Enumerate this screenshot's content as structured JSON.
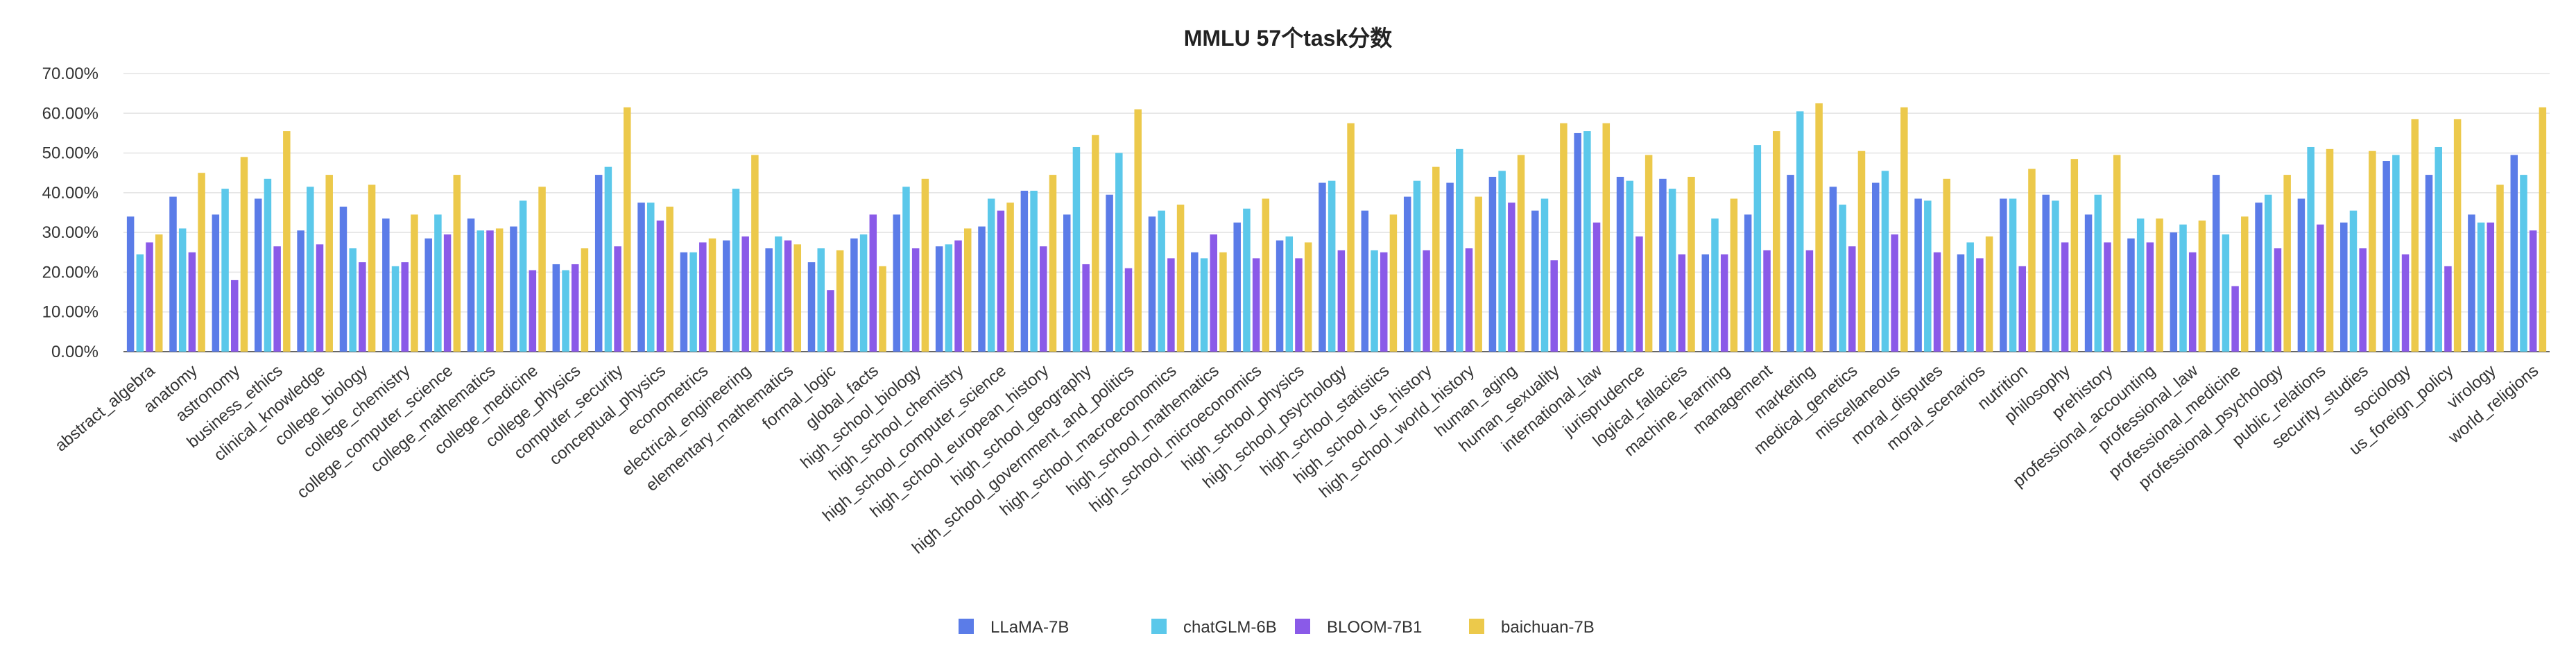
{
  "chart_data": {
    "type": "bar",
    "title": "MMLU 57个task分数",
    "xlabel": "",
    "ylabel": "",
    "ylim": [
      0,
      70
    ],
    "yticks": [
      "0.00%",
      "10.00%",
      "20.00%",
      "30.00%",
      "40.00%",
      "50.00%",
      "60.00%",
      "70.00%"
    ],
    "grid": true,
    "legend_position": "bottom-center",
    "categories": [
      "abstract_algebra",
      "anatomy",
      "astronomy",
      "business_ethics",
      "clinical_knowledge",
      "college_biology",
      "college_chemistry",
      "college_computer_science",
      "college_mathematics",
      "college_medicine",
      "college_physics",
      "computer_security",
      "conceptual_physics",
      "econometrics",
      "electrical_engineering",
      "elementary_mathematics",
      "formal_logic",
      "global_facts",
      "high_school_biology",
      "high_school_chemistry",
      "high_school_computer_science",
      "high_school_european_history",
      "high_school_geography",
      "high_school_government_and_politics",
      "high_school_macroeconomics",
      "high_school_mathematics",
      "high_school_microeconomics",
      "high_school_physics",
      "high_school_psychology",
      "high_school_statistics",
      "high_school_us_history",
      "high_school_world_history",
      "human_aging",
      "human_sexuality",
      "international_law",
      "jurisprudence",
      "logical_fallacies",
      "machine_learning",
      "management",
      "marketing",
      "medical_genetics",
      "miscellaneous",
      "moral_disputes",
      "moral_scenarios",
      "nutrition",
      "philosophy",
      "prehistory",
      "professional_accounting",
      "professional_law",
      "professional_medicine",
      "professional_psychology",
      "public_relations",
      "security_studies",
      "sociology",
      "us_foreign_policy",
      "virology",
      "world_religions"
    ],
    "series": [
      {
        "name": "LLaMA-7B",
        "color": "#5b7ce8",
        "values": [
          34,
          39,
          34.5,
          38.5,
          30.5,
          36.5,
          33.5,
          28.5,
          33.5,
          31.5,
          22,
          44.5,
          37.5,
          25,
          28,
          26,
          22.5,
          28.5,
          34.5,
          26.5,
          31.5,
          40.5,
          34.5,
          39.5,
          34,
          25,
          32.5,
          28,
          42.5,
          35.5,
          39,
          42.5,
          44,
          35.5,
          55,
          44,
          43.5,
          24.5,
          34.5,
          44.5,
          41.5,
          42.5,
          38.5,
          24.5,
          38.5,
          39.5,
          34.5,
          28.5,
          30,
          44.5,
          37.5,
          38.5,
          32.5,
          48,
          44.5,
          34.5,
          49.5
        ]
      },
      {
        "name": "chatGLM-6B",
        "color": "#5bc8ea",
        "values": [
          24.5,
          31,
          41,
          43.5,
          41.5,
          26,
          21.5,
          34.5,
          30.5,
          38,
          20.5,
          46.5,
          37.5,
          25,
          41,
          29,
          26,
          29.5,
          41.5,
          27,
          38.5,
          40.5,
          51.5,
          50,
          35.5,
          23.5,
          36,
          29,
          43,
          25.5,
          43,
          51,
          45.5,
          38.5,
          55.5,
          43,
          41,
          33.5,
          52,
          60.5,
          37,
          45.5,
          38,
          27.5,
          38.5,
          38,
          39.5,
          33.5,
          32,
          29.5,
          39.5,
          51.5,
          35.5,
          49.5,
          51.5,
          32.5,
          44.5
        ]
      },
      {
        "name": "BLOOM-7B1",
        "color": "#8a5ae8",
        "values": [
          27.5,
          25,
          18,
          26.5,
          27,
          22.5,
          22.5,
          29.5,
          30.5,
          20.5,
          22,
          26.5,
          33,
          27.5,
          29,
          28,
          15.5,
          34.5,
          26,
          28,
          35.5,
          26.5,
          22,
          21,
          23.5,
          29.5,
          23.5,
          23.5,
          25.5,
          25,
          25.5,
          26,
          37.5,
          23,
          32.5,
          29,
          24.5,
          24.5,
          25.5,
          25.5,
          26.5,
          29.5,
          25,
          23.5,
          21.5,
          27.5,
          27.5,
          27.5,
          25,
          16.5,
          26,
          32,
          26,
          24.5,
          21.5,
          32.5,
          30.5
        ]
      },
      {
        "name": "baichuan-7B",
        "color": "#ecc94b",
        "values": [
          29.5,
          45,
          49,
          55.5,
          44.5,
          42,
          34.5,
          44.5,
          31,
          41.5,
          26,
          61.5,
          36.5,
          28.5,
          49.5,
          27,
          25.5,
          21.5,
          43.5,
          31,
          37.5,
          44.5,
          54.5,
          61,
          37,
          25,
          38.5,
          27.5,
          57.5,
          34.5,
          46.5,
          39,
          49.5,
          57.5,
          57.5,
          49.5,
          44,
          38.5,
          55.5,
          62.5,
          50.5,
          61.5,
          43.5,
          29,
          46,
          48.5,
          49.5,
          33.5,
          33,
          34,
          44.5,
          51,
          50.5,
          58.5,
          58.5,
          42,
          61.5
        ]
      }
    ]
  }
}
